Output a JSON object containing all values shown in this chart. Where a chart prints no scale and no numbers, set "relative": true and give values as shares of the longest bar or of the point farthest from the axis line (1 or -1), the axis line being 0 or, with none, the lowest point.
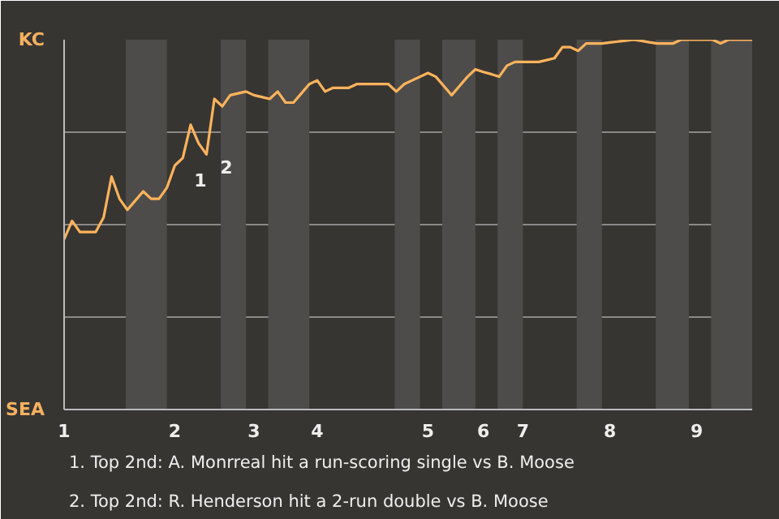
{
  "chart_data": {
    "type": "line",
    "relative": true,
    "categories": [
      "1",
      null,
      null,
      null,
      null,
      null,
      null,
      null,
      null,
      null,
      null,
      null,
      null,
      null,
      "2",
      null,
      null,
      null,
      null,
      null,
      null,
      null,
      null,
      null,
      "3",
      null,
      null,
      null,
      null,
      null,
      null,
      null,
      "4",
      null,
      null,
      null,
      null,
      null,
      null,
      null,
      null,
      null,
      null,
      null,
      null,
      null,
      "5",
      null,
      null,
      null,
      null,
      null,
      null,
      "6",
      null,
      null,
      null,
      null,
      "7",
      null,
      null,
      null,
      null,
      null,
      null,
      null,
      null,
      null,
      null,
      "8",
      null,
      null,
      null,
      null,
      null,
      null,
      null,
      null,
      null,
      null,
      "9",
      null,
      null,
      null,
      null,
      null,
      null,
      null
    ],
    "series": [
      {
        "color": "#ffb35c",
        "values": [
          0.46,
          0.51,
          0.48,
          0.48,
          0.48,
          0.52,
          0.63,
          0.57,
          0.54,
          0.565,
          0.59,
          0.57,
          0.57,
          0.6,
          0.66,
          0.68,
          0.77,
          0.72,
          0.69,
          0.84,
          0.82,
          0.85,
          0.855,
          0.86,
          0.85,
          0.845,
          0.84,
          0.86,
          0.83,
          0.83,
          0.855,
          0.88,
          0.89,
          0.86,
          0.87,
          0.87,
          0.87,
          0.88,
          0.88,
          0.88,
          0.88,
          0.88,
          0.86,
          0.88,
          0.89,
          0.9,
          0.91,
          0.9,
          0.875,
          0.85,
          0.875,
          0.9,
          0.92,
          0.913,
          0.907,
          0.9,
          0.93,
          0.94,
          0.94,
          0.94,
          0.94,
          0.945,
          0.95,
          0.98,
          0.98,
          0.97,
          0.99,
          0.99,
          0.99,
          0.9925,
          0.995,
          0.9975,
          1.0,
          0.997,
          0.993,
          0.99,
          0.99,
          0.99,
          1.0,
          1.0,
          1.0,
          1.0,
          1.0,
          0.99,
          1.0,
          1.0,
          1.0,
          1.0
        ]
      }
    ],
    "grid": "y",
    "marker": "none",
    "line_style": "solid",
    "annotations": [
      "KC",
      "SEA",
      "1",
      "2",
      "1. Top 2nd: A. Monrreal hit a run-scoring single vs B. Moose",
      "2. Top 2nd: R. Henderson hit a 2-run double vs B. Moose"
    ]
  }
}
